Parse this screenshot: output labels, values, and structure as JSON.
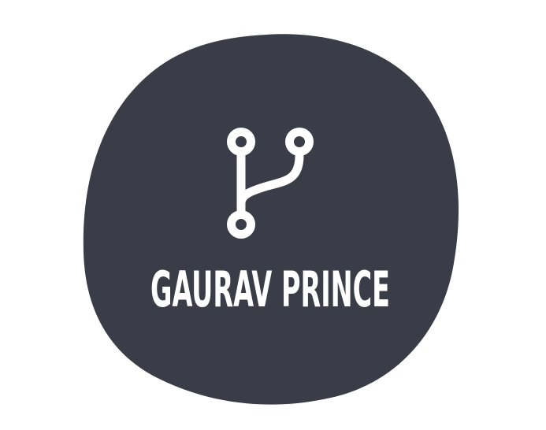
{
  "logo": {
    "text": "GAURAV PRINCE",
    "icon": "git-branch-icon",
    "colors": {
      "blob": "#3a3d47",
      "foreground": "#ffffff",
      "background": "#ffffff"
    }
  }
}
